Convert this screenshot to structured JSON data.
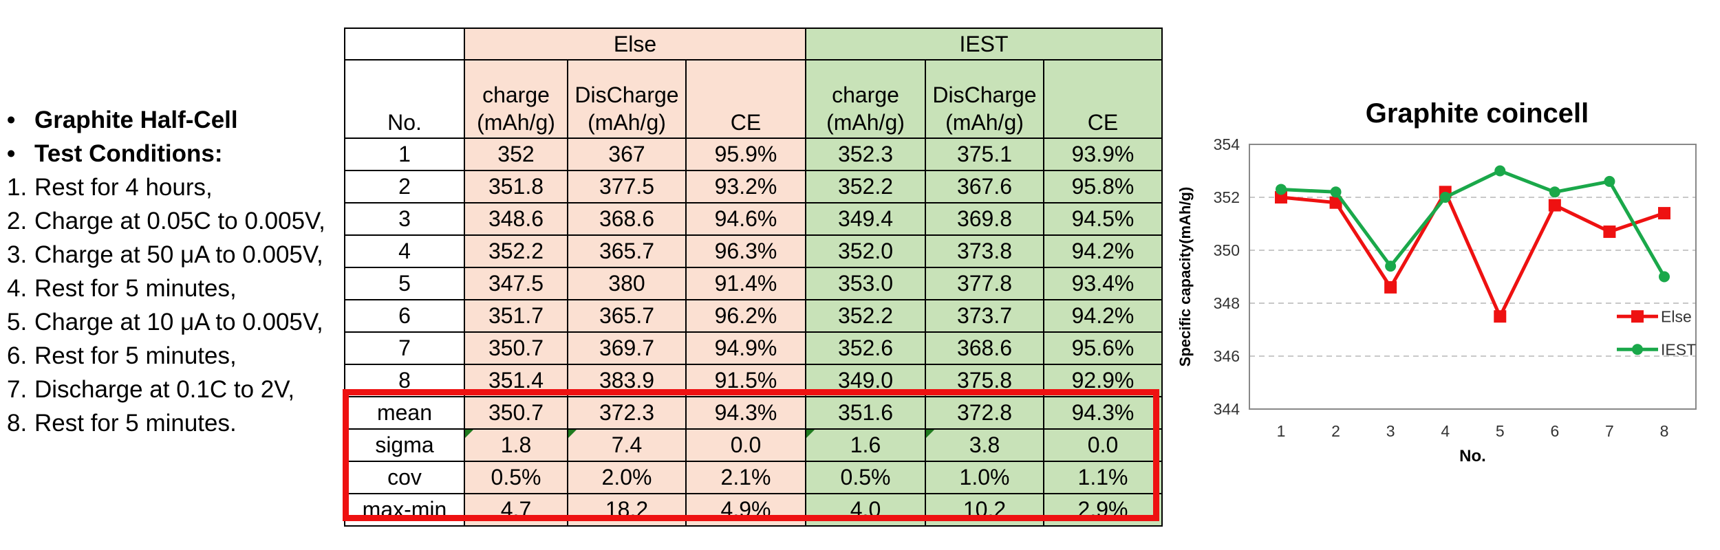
{
  "notes": {
    "bullets": [
      "Graphite Half-Cell",
      "Test Conditions:"
    ],
    "steps": [
      {
        "num": "1.",
        "text": "Rest for 4 hours,"
      },
      {
        "num": "2.",
        "text": "Charge at 0.05C to 0.005V,"
      },
      {
        "num": "3.",
        "text": "Charge at 50 μA to 0.005V,"
      },
      {
        "num": "4.",
        "text": "Rest for 5 minutes,"
      },
      {
        "num": "5.",
        "text": "Charge at 10 μA to 0.005V,"
      },
      {
        "num": "6.",
        "text": "Rest for 5 minutes,"
      },
      {
        "num": "7.",
        "text": "Discharge at 0.1C to 2V,"
      },
      {
        "num": "8.",
        "text": "Rest for 5 minutes."
      }
    ]
  },
  "table": {
    "groups": [
      "Else",
      "IEST"
    ],
    "no_header": "No.",
    "col_headers": [
      [
        "charge",
        "(mAh/g)"
      ],
      [
        "DisCharge",
        "(mAh/g)"
      ],
      [
        "CE"
      ],
      [
        "charge",
        "(mAh/g)"
      ],
      [
        "DisCharge",
        "(mAh/g)"
      ],
      [
        "CE"
      ]
    ],
    "rows": [
      [
        "1",
        "352",
        "367",
        "95.9%",
        "352.3",
        "375.1",
        "93.9%"
      ],
      [
        "2",
        "351.8",
        "377.5",
        "93.2%",
        "352.2",
        "367.6",
        "95.8%"
      ],
      [
        "3",
        "348.6",
        "368.6",
        "94.6%",
        "349.4",
        "369.8",
        "94.5%"
      ],
      [
        "4",
        "352.2",
        "365.7",
        "96.3%",
        "352.0",
        "373.8",
        "94.2%"
      ],
      [
        "5",
        "347.5",
        "380",
        "91.4%",
        "353.0",
        "377.8",
        "93.4%"
      ],
      [
        "6",
        "351.7",
        "365.7",
        "96.2%",
        "352.2",
        "373.7",
        "94.2%"
      ],
      [
        "7",
        "350.7",
        "369.7",
        "94.9%",
        "352.6",
        "368.6",
        "95.6%"
      ],
      [
        "8",
        "351.4",
        "383.9",
        "91.5%",
        "349.0",
        "375.8",
        "92.9%"
      ],
      [
        "mean",
        "350.7",
        "372.3",
        "94.3%",
        "351.6",
        "372.8",
        "94.3%"
      ],
      [
        "sigma",
        "1.8",
        "7.4",
        "0.0",
        "1.6",
        "3.8",
        "0.0"
      ],
      [
        "cov",
        "0.5%",
        "2.0%",
        "2.1%",
        "0.5%",
        "1.0%",
        "1.1%"
      ],
      [
        "max-min",
        "4.7",
        "18.2",
        "4.9%",
        "4.0",
        "10.2",
        "2.9%"
      ]
    ],
    "highlight_color": "#ee1111",
    "else_color": "#fbe0d2",
    "iest_color": "#c8e2b8"
  },
  "chart_data": {
    "type": "line",
    "title": "Graphite coincell",
    "xlabel": "No.",
    "ylabel": "Specific capacity(mAh/g)",
    "x": [
      1,
      2,
      3,
      4,
      5,
      6,
      7,
      8
    ],
    "ylim": [
      344,
      354
    ],
    "yticks": [
      344,
      346,
      348,
      350,
      352,
      354
    ],
    "grid": "horizontal dashed",
    "legend_position": "right",
    "series": [
      {
        "name": "Else",
        "color": "#ee1111",
        "marker": "square",
        "values": [
          352.0,
          351.8,
          348.6,
          352.2,
          347.5,
          351.7,
          350.7,
          351.4
        ]
      },
      {
        "name": "IEST",
        "color": "#1aa84a",
        "marker": "circle",
        "values": [
          352.3,
          352.2,
          349.4,
          352.0,
          353.0,
          352.2,
          352.6,
          349.0
        ]
      }
    ]
  }
}
